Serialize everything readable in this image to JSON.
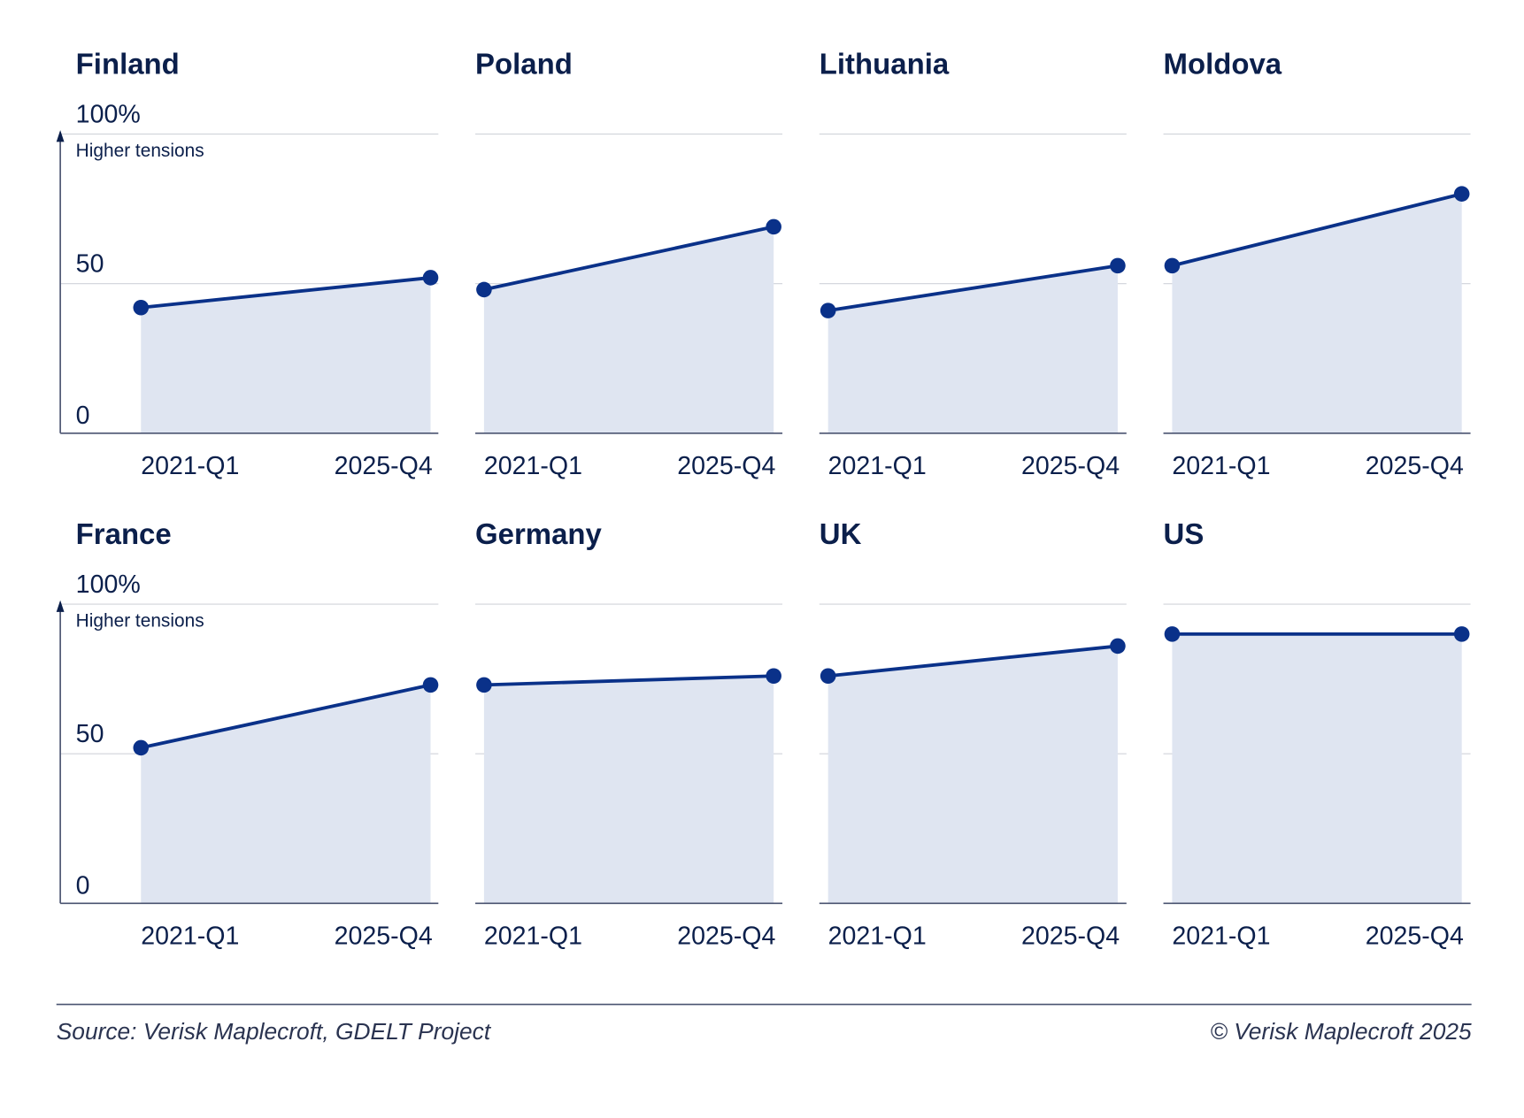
{
  "chart_data": {
    "type": "area",
    "layout": "small-multiples 4x2",
    "y_ticks": [
      "100%",
      "50",
      "0"
    ],
    "ylim": [
      0,
      100
    ],
    "y_annotation": "Higher tensions",
    "categories": [
      "2021-Q1",
      "2025-Q4"
    ],
    "grid": true,
    "colors": {
      "line": "#0a3189",
      "fill": "#dfe5f1",
      "text": "#0b1f4b",
      "grid": "#d0d3da",
      "axis": "#4a5370"
    },
    "panels": [
      {
        "title": "Finland",
        "values": [
          42,
          52
        ]
      },
      {
        "title": "Poland",
        "values": [
          48,
          69
        ]
      },
      {
        "title": "Lithuania",
        "values": [
          41,
          56
        ]
      },
      {
        "title": "Moldova",
        "values": [
          56,
          80
        ]
      },
      {
        "title": "France",
        "values": [
          52,
          73
        ]
      },
      {
        "title": "Germany",
        "values": [
          73,
          76
        ]
      },
      {
        "title": "UK",
        "values": [
          76,
          86
        ]
      },
      {
        "title": "US",
        "values": [
          90,
          90
        ]
      }
    ]
  },
  "footer": {
    "source": "Source: Verisk Maplecroft, GDELT Project",
    "copyright": "© Verisk Maplecroft 2025"
  }
}
